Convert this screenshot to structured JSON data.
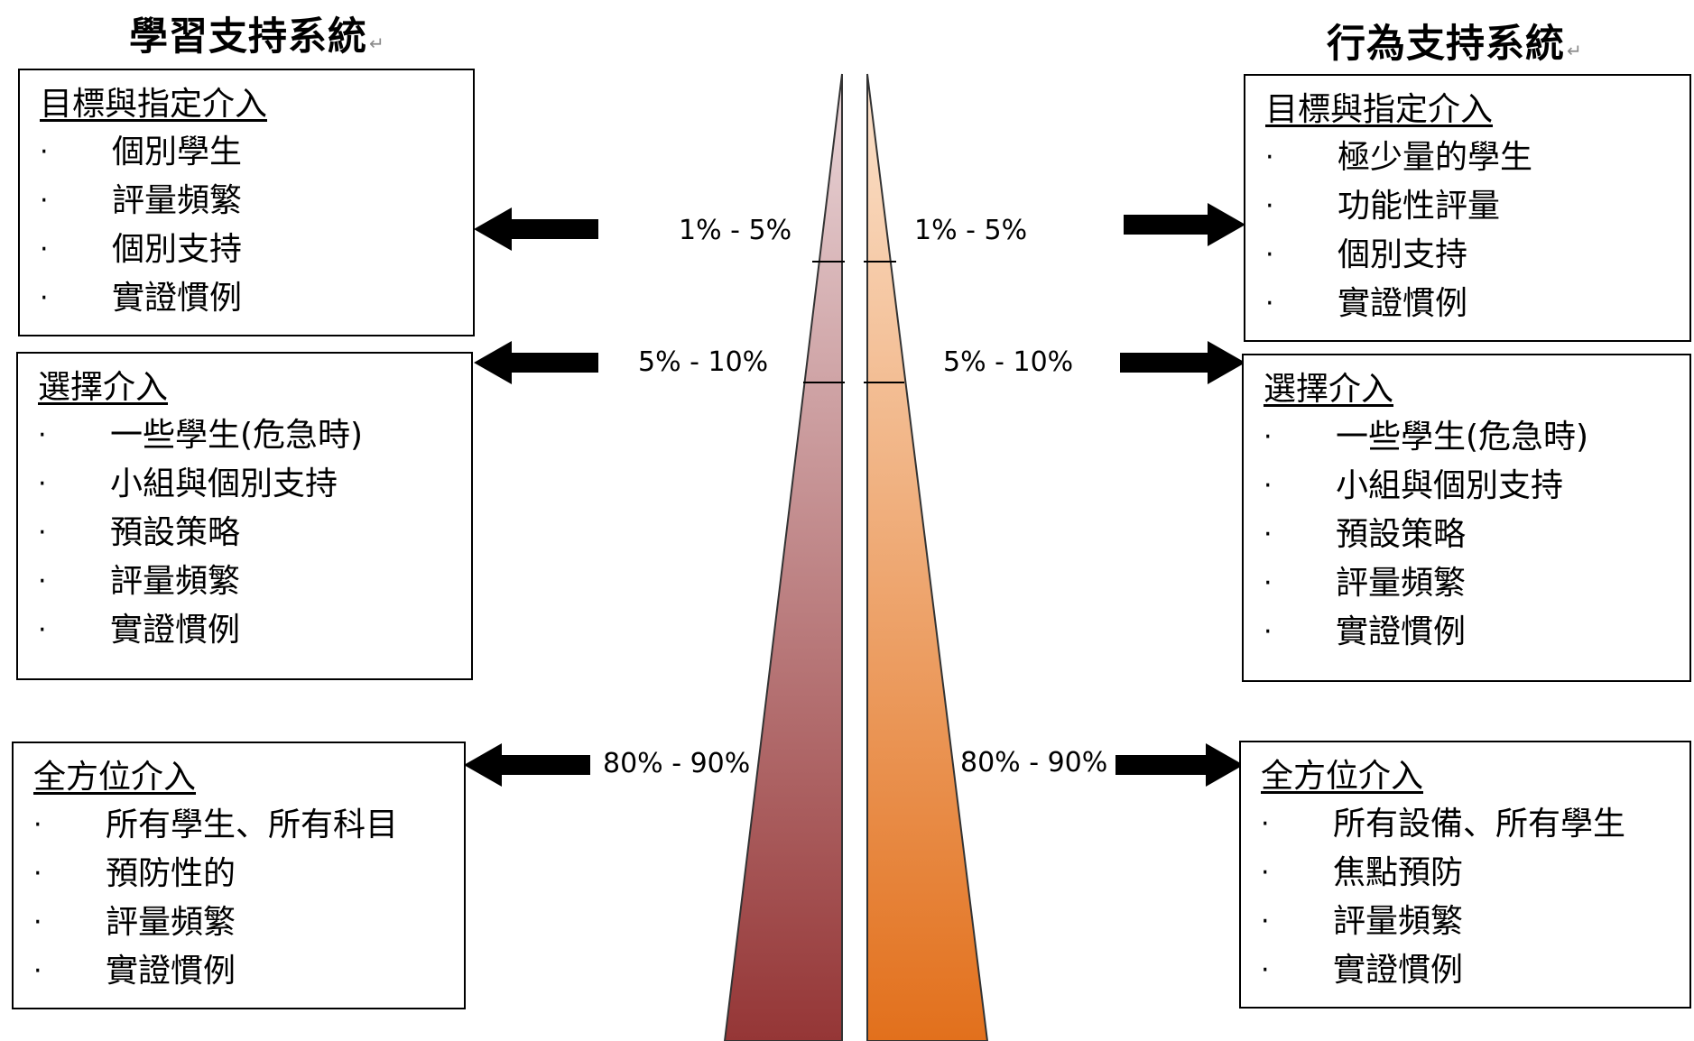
{
  "left": {
    "heading": "學習支持系統",
    "tiers": [
      {
        "title": "目標與指定介入",
        "items": [
          "個別學生",
          "評量頻繁",
          "個別支持",
          "實證慣例"
        ],
        "percent": "1% - 5%"
      },
      {
        "title": "選擇介入",
        "items": [
          "一些學生(危急時)",
          "小組與個別支持",
          "預設策略",
          "評量頻繁",
          "實證慣例"
        ],
        "percent": "5% - 10%"
      },
      {
        "title": "全方位介入",
        "items": [
          "所有學生、所有科目",
          "預防性的",
          "評量頻繁",
          "實證慣例"
        ],
        "percent": "80% - 90%"
      }
    ]
  },
  "right": {
    "heading": "行為支持系統",
    "tiers": [
      {
        "title": "目標與指定介入",
        "items": [
          "極少量的學生",
          "功能性評量",
          "個別支持",
          "實證慣例"
        ],
        "percent": "1% - 5%"
      },
      {
        "title": "選擇介入",
        "items": [
          "一些學生(危急時)",
          "小組與個別支持",
          "預設策略",
          "評量頻繁",
          "實證慣例"
        ],
        "percent": "5% - 10%"
      },
      {
        "title": "全方位介入",
        "items": [
          "所有設備、所有學生",
          "焦點預防",
          "評量頻繁",
          "實證慣例"
        ],
        "percent": "80% - 90%"
      }
    ]
  },
  "bullet_char": "·",
  "colors": {
    "left_wedge_top": "#ead7da",
    "left_wedge_bottom": "#953636",
    "right_wedge_top": "#fbe2cc",
    "right_wedge_bottom": "#e2701c",
    "arrow": "#000000"
  }
}
